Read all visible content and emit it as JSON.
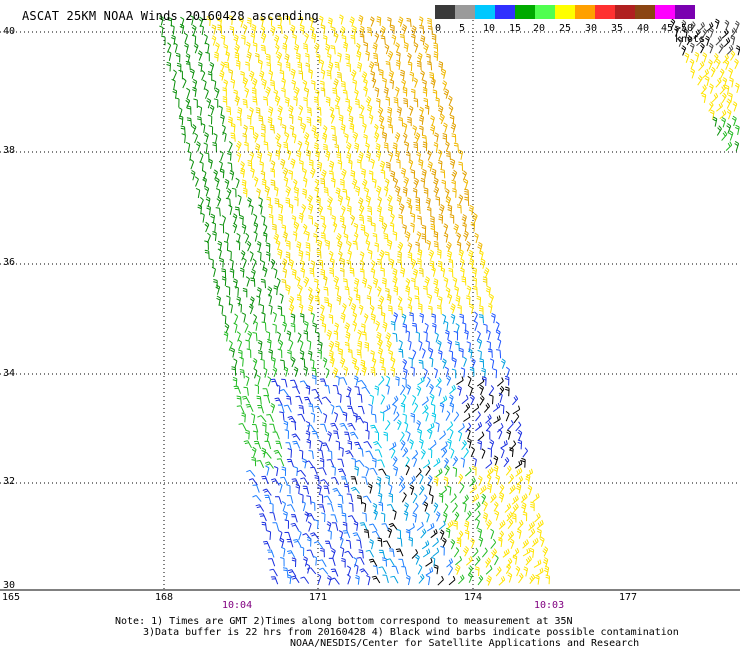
{
  "title": "ASCAT 25KM NOAA Winds 20160428 ascending",
  "colorbar": {
    "labels": [
      "0",
      "5",
      "10",
      "15",
      "20",
      "25",
      "30",
      "35",
      "40",
      "45",
      ">50 knots"
    ],
    "colors": [
      "#3a3a3a",
      "#9a9a9a",
      "#00c8ff",
      "#3030ff",
      "#00aa00",
      "#50ff50",
      "#ffff00",
      "#ffa000",
      "#ff3030",
      "#b02020",
      "#8b4513",
      "#ff00ff",
      "#7a00b0"
    ]
  },
  "axes": {
    "lat_labels": [
      "40",
      "38",
      "36",
      "34",
      "32",
      "30"
    ],
    "lon_labels": [
      "165",
      "168",
      "171",
      "174",
      "177"
    ]
  },
  "times": {
    "left": "10:04",
    "right": "10:03"
  },
  "notes": {
    "line1": "Note: 1) Times are GMT 2)Times along bottom correspond to measurement at 35N",
    "line2": "3)Data buffer is 22 hrs from 20160428 4) Black wind barbs indicate possible contamination",
    "line3": "NOAA/NESDIS/Center for Satellite Applications and Research"
  }
}
